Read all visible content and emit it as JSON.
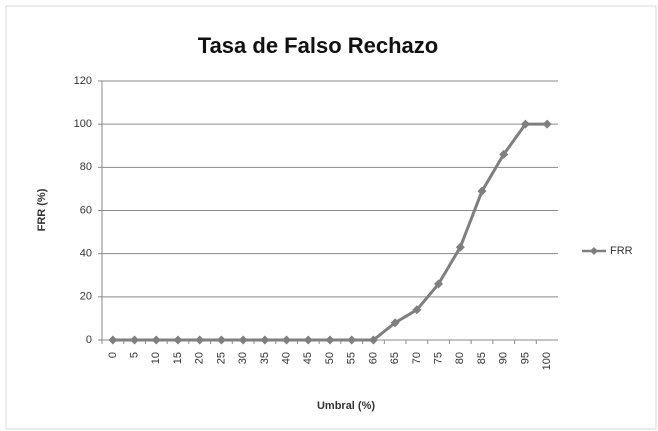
{
  "chart_data": {
    "type": "line",
    "title": "Tasa de Falso Rechazo",
    "x_label": "Umbral (%)",
    "y_label": "FRR (%)",
    "categories": [
      "0",
      "5",
      "10",
      "15",
      "20",
      "25",
      "30",
      "35",
      "40",
      "45",
      "50",
      "55",
      "60",
      "65",
      "70",
      "75",
      "80",
      "85",
      "90",
      "95",
      "100"
    ],
    "series": [
      {
        "name": "FRR",
        "color": "#7f7f7f",
        "values": [
          0,
          0,
          0,
          0,
          0,
          0,
          0,
          0,
          0,
          0,
          0,
          0,
          0,
          8,
          14,
          26,
          43,
          69,
          86,
          100,
          100
        ]
      }
    ],
    "ylim": [
      0,
      120
    ],
    "yticks": [
      0,
      20,
      40,
      60,
      80,
      100,
      120
    ],
    "grid": true,
    "legend": "right"
  }
}
